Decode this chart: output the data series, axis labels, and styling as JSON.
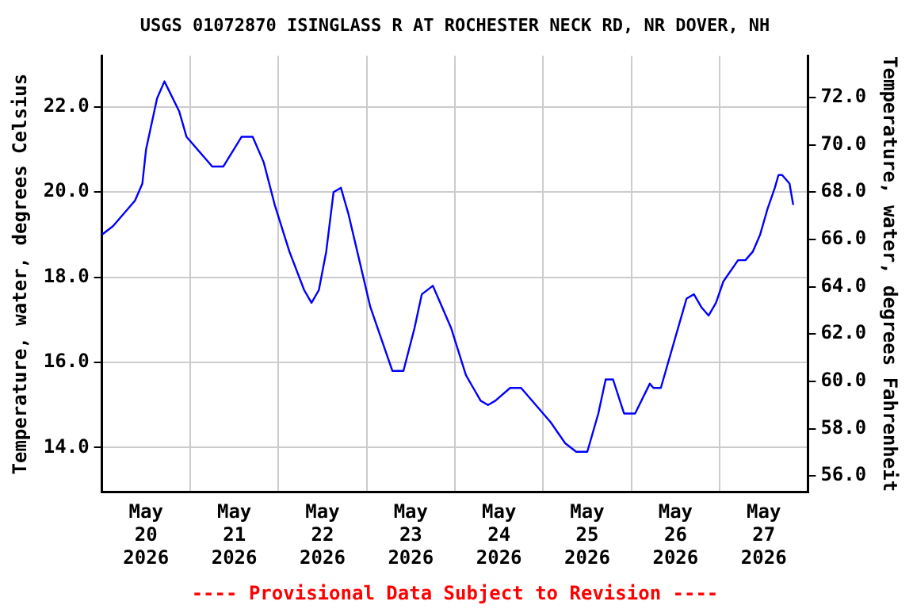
{
  "chart_data": {
    "type": "line",
    "title": "USGS 01072870 ISINGLASS R AT ROCHESTER NECK RD, NR DOVER, NH",
    "ylabel": "Temperature, water, degrees Celsius",
    "y2label": "Temperature, water, degrees Fahrenheit",
    "annotations": [
      "---- Provisional Data Subject to Revision ----"
    ],
    "x": [
      "2026-05-20T00:00",
      "2026-05-20T03:00",
      "2026-05-20T07:00",
      "2026-05-20T09:00",
      "2026-05-20T11:00",
      "2026-05-20T12:00",
      "2026-05-20T15:00",
      "2026-05-20T17:00",
      "2026-05-20T21:00",
      "2026-05-20T23:00",
      "2026-05-21T04:00",
      "2026-05-21T06:00",
      "2026-05-21T09:00",
      "2026-05-21T14:00",
      "2026-05-21T17:00",
      "2026-05-21T20:00",
      "2026-05-21T23:00",
      "2026-05-22T03:00",
      "2026-05-22T07:00",
      "2026-05-22T09:00",
      "2026-05-22T11:00",
      "2026-05-22T13:00",
      "2026-05-22T15:00",
      "2026-05-22T17:00",
      "2026-05-22T19:00",
      "2026-05-22T22:00",
      "2026-05-23T01:00",
      "2026-05-23T05:00",
      "2026-05-23T07:00",
      "2026-05-23T10:00",
      "2026-05-23T13:00",
      "2026-05-23T15:00",
      "2026-05-23T18:00",
      "2026-05-23T20:00",
      "2026-05-23T23:00",
      "2026-05-24T03:00",
      "2026-05-24T05:00",
      "2026-05-24T07:00",
      "2026-05-24T09:00",
      "2026-05-24T11:00",
      "2026-05-24T15:00",
      "2026-05-24T18:00",
      "2026-05-24T22:00",
      "2026-05-25T02:00",
      "2026-05-25T06:00",
      "2026-05-25T09:00",
      "2026-05-25T12:00",
      "2026-05-25T15:00",
      "2026-05-25T17:00",
      "2026-05-25T19:00",
      "2026-05-25T22:00",
      "2026-05-26T01:00",
      "2026-05-26T05:00",
      "2026-05-26T06:00",
      "2026-05-26T08:00",
      "2026-05-26T10:00",
      "2026-05-26T13:00",
      "2026-05-26T15:00",
      "2026-05-26T17:00",
      "2026-05-26T19:00",
      "2026-05-26T21:00",
      "2026-05-26T23:00",
      "2026-05-27T01:00",
      "2026-05-27T05:00",
      "2026-05-27T07:00",
      "2026-05-27T09:00",
      "2026-05-27T11:00",
      "2026-05-27T13:00",
      "2026-05-27T15:00",
      "2026-05-27T16:00",
      "2026-05-27T17:00",
      "2026-05-27T19:00",
      "2026-05-27T20:00"
    ],
    "series": [
      {
        "color": "#0000ff",
        "values": [
          19.0,
          19.2,
          19.6,
          19.8,
          20.2,
          21.0,
          22.2,
          22.6,
          21.9,
          21.3,
          20.8,
          20.6,
          20.6,
          21.3,
          21.3,
          20.7,
          19.7,
          18.6,
          17.7,
          17.4,
          17.7,
          18.6,
          20.0,
          20.1,
          19.5,
          18.4,
          17.3,
          16.3,
          15.8,
          15.8,
          16.8,
          17.6,
          17.8,
          17.4,
          16.8,
          15.7,
          15.4,
          15.1,
          15.0,
          15.1,
          15.4,
          15.4,
          15.0,
          14.6,
          14.1,
          13.9,
          13.9,
          14.8,
          15.6,
          15.6,
          14.8,
          14.8,
          15.5,
          15.4,
          15.4,
          16.0,
          16.9,
          17.5,
          17.6,
          17.3,
          17.1,
          17.4,
          17.9,
          18.4,
          18.4,
          18.6,
          19.0,
          19.6,
          20.1,
          20.4,
          20.4,
          20.2,
          19.7
        ]
      }
    ],
    "xlim": [
      "2026-05-20T00:00",
      "2026-05-28T00:00"
    ],
    "xticks": [
      {
        "value": "2026-05-20T12:00",
        "label": "May 20 2026"
      },
      {
        "value": "2026-05-21T00:00",
        "label": null
      },
      {
        "value": "2026-05-21T12:00",
        "label": "May 21 2026"
      },
      {
        "value": "2026-05-22T00:00",
        "label": null
      },
      {
        "value": "2026-05-22T12:00",
        "label": "May 22 2026"
      },
      {
        "value": "2026-05-23T00:00",
        "label": null
      },
      {
        "value": "2026-05-23T12:00",
        "label": "May 23 2026"
      },
      {
        "value": "2026-05-24T00:00",
        "label": null
      },
      {
        "value": "2026-05-24T12:00",
        "label": "May 24 2026"
      },
      {
        "value": "2026-05-25T00:00",
        "label": null
      },
      {
        "value": "2026-05-25T12:00",
        "label": "May 25 2026"
      },
      {
        "value": "2026-05-26T00:00",
        "label": null
      },
      {
        "value": "2026-05-26T12:00",
        "label": "May 26 2026"
      },
      {
        "value": "2026-05-27T00:00",
        "label": null
      },
      {
        "value": "2026-05-27T12:00",
        "label": "May 27 2026"
      }
    ],
    "ylim": [
      12.95,
      23.2
    ],
    "yticks": [
      {
        "value": 14,
        "label": "14.0"
      },
      {
        "value": 16,
        "label": "16.0"
      },
      {
        "value": 18,
        "label": "18.0"
      },
      {
        "value": 20,
        "label": "20.0"
      },
      {
        "value": 22,
        "label": "22.0"
      }
    ],
    "y2lim": [
      55.31,
      73.76
    ],
    "y2ticks": [
      {
        "value": 56,
        "label": "56.0"
      },
      {
        "value": 58,
        "label": "58.0"
      },
      {
        "value": 60,
        "label": "60.0"
      },
      {
        "value": 62,
        "label": "62.0"
      },
      {
        "value": 64,
        "label": "64.0"
      },
      {
        "value": 66,
        "label": "66.0"
      },
      {
        "value": 68,
        "label": "68.0"
      },
      {
        "value": 70,
        "label": "70.0"
      },
      {
        "value": 72,
        "label": "72.0"
      }
    ],
    "grid": true,
    "marker": "none",
    "line_style": "solid"
  }
}
